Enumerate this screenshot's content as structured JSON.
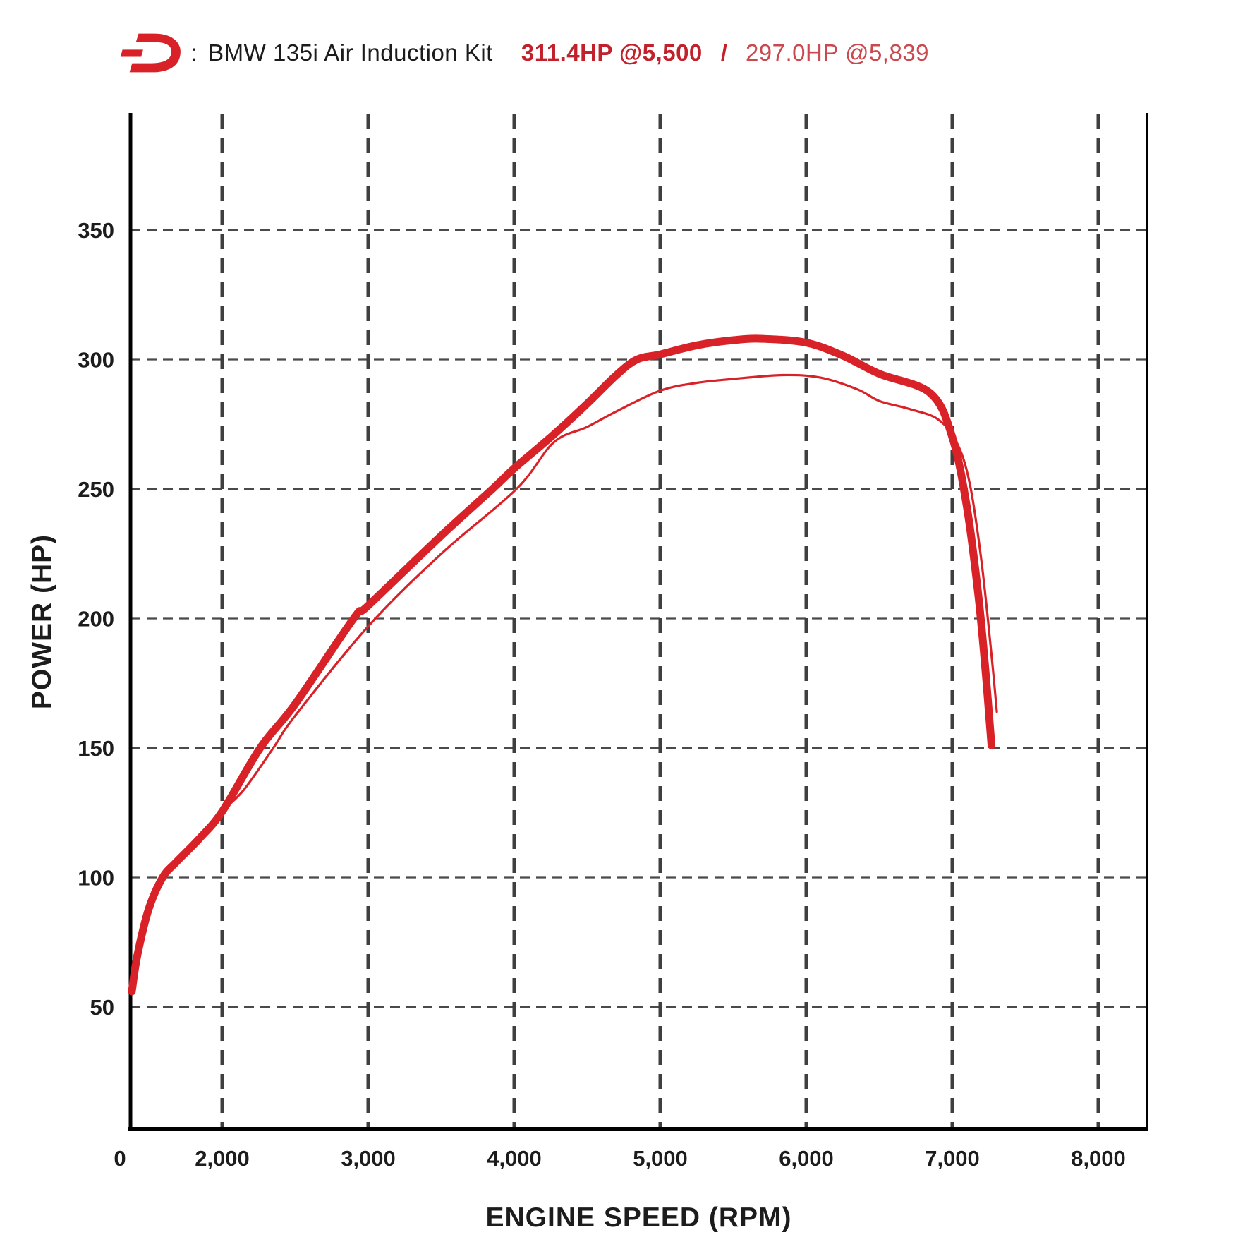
{
  "header": {
    "logo_name": "dinan-logo",
    "separator": ":",
    "title": "BMW 135i Air Induction Kit",
    "result_primary": "311.4HP @5,500",
    "divider": "/",
    "result_secondary": "297.0HP @5,839"
  },
  "colors": {
    "curve_red": "#d92128",
    "header_primary_red": "#c2212b",
    "header_secondary_red": "#c9494f",
    "text_black": "#1c1c1c",
    "axis_black": "#000000",
    "grid_vertical": "#3f3f3f",
    "grid_horizontal": "#4a4a4a",
    "background": "#ffffff"
  },
  "chart_data": {
    "type": "line",
    "title": "BMW 135i Air Induction Kit dyno power curves",
    "xlabel": "ENGINE SPEED (RPM)",
    "ylabel": "POWER (HP)",
    "xlim": [
      0,
      8333
    ],
    "ylim": [
      0,
      395
    ],
    "grid": "dashed",
    "legend_position": "none",
    "x_scale_note": "x segment 0-2000 RPM is compressed relative to the 1000-RPM spacing used from 2000-8000",
    "x_ticks": [
      {
        "value": 0,
        "label": "0"
      },
      {
        "value": 2000,
        "label": "2,000"
      },
      {
        "value": 3000,
        "label": "3,000"
      },
      {
        "value": 4000,
        "label": "4,000"
      },
      {
        "value": 5000,
        "label": "5,000"
      },
      {
        "value": 6000,
        "label": "6,000"
      },
      {
        "value": 7000,
        "label": "7,000"
      },
      {
        "value": 8000,
        "label": "8,000"
      }
    ],
    "y_ticks": [
      {
        "value": 50,
        "label": "50"
      },
      {
        "value": 100,
        "label": "100"
      },
      {
        "value": 150,
        "label": "150"
      },
      {
        "value": 200,
        "label": "200"
      },
      {
        "value": 250,
        "label": "250"
      },
      {
        "value": 300,
        "label": "300"
      },
      {
        "value": 350,
        "label": "350"
      }
    ],
    "series": [
      {
        "name": "dinan-air-induction-kit",
        "peak_label": "311.4HP @5,500",
        "peak_hp": 311.4,
        "peak_rpm": 5500,
        "line_weight": "thick",
        "points": [
          [
            30,
            56
          ],
          [
            150,
            70
          ],
          [
            400,
            88
          ],
          [
            700,
            100
          ],
          [
            1000,
            106
          ],
          [
            1500,
            115
          ],
          [
            2000,
            125.5
          ],
          [
            2260,
            150
          ],
          [
            2500,
            167
          ],
          [
            2900,
            200
          ],
          [
            3000,
            205
          ],
          [
            3500,
            232
          ],
          [
            3850,
            250
          ],
          [
            4000,
            258
          ],
          [
            4270,
            271
          ],
          [
            4500,
            283
          ],
          [
            4700,
            294
          ],
          [
            4840,
            300
          ],
          [
            5000,
            302
          ],
          [
            5250,
            305.5
          ],
          [
            5500,
            307.5
          ],
          [
            5700,
            308
          ],
          [
            6000,
            306.5
          ],
          [
            6250,
            301.5
          ],
          [
            6500,
            294.5
          ],
          [
            6850,
            287
          ],
          [
            7000,
            270
          ],
          [
            7100,
            243
          ],
          [
            7180,
            208
          ],
          [
            7230,
            178
          ],
          [
            7268,
            151
          ]
        ]
      },
      {
        "name": "stock-baseline",
        "peak_label": "297.0HP @5,839",
        "peak_hp": 297.0,
        "peak_rpm": 5839,
        "line_weight": "thin",
        "points": [
          [
            30,
            56
          ],
          [
            150,
            70
          ],
          [
            400,
            88
          ],
          [
            700,
            100
          ],
          [
            1000,
            106
          ],
          [
            1500,
            115
          ],
          [
            2000,
            125.5
          ],
          [
            2150,
            134
          ],
          [
            2350,
            150
          ],
          [
            2500,
            162.5
          ],
          [
            3000,
            197
          ],
          [
            3500,
            225
          ],
          [
            4015,
            250
          ],
          [
            4270,
            268
          ],
          [
            4500,
            274
          ],
          [
            4700,
            280
          ],
          [
            5000,
            288
          ],
          [
            5250,
            291
          ],
          [
            5500,
            292.5
          ],
          [
            5839,
            294
          ],
          [
            6100,
            293
          ],
          [
            6350,
            288.5
          ],
          [
            6500,
            284
          ],
          [
            6700,
            281
          ],
          [
            6900,
            277
          ],
          [
            7030,
            268
          ],
          [
            7120,
            252
          ],
          [
            7200,
            222
          ],
          [
            7270,
            185
          ],
          [
            7305,
            164
          ]
        ]
      }
    ]
  }
}
